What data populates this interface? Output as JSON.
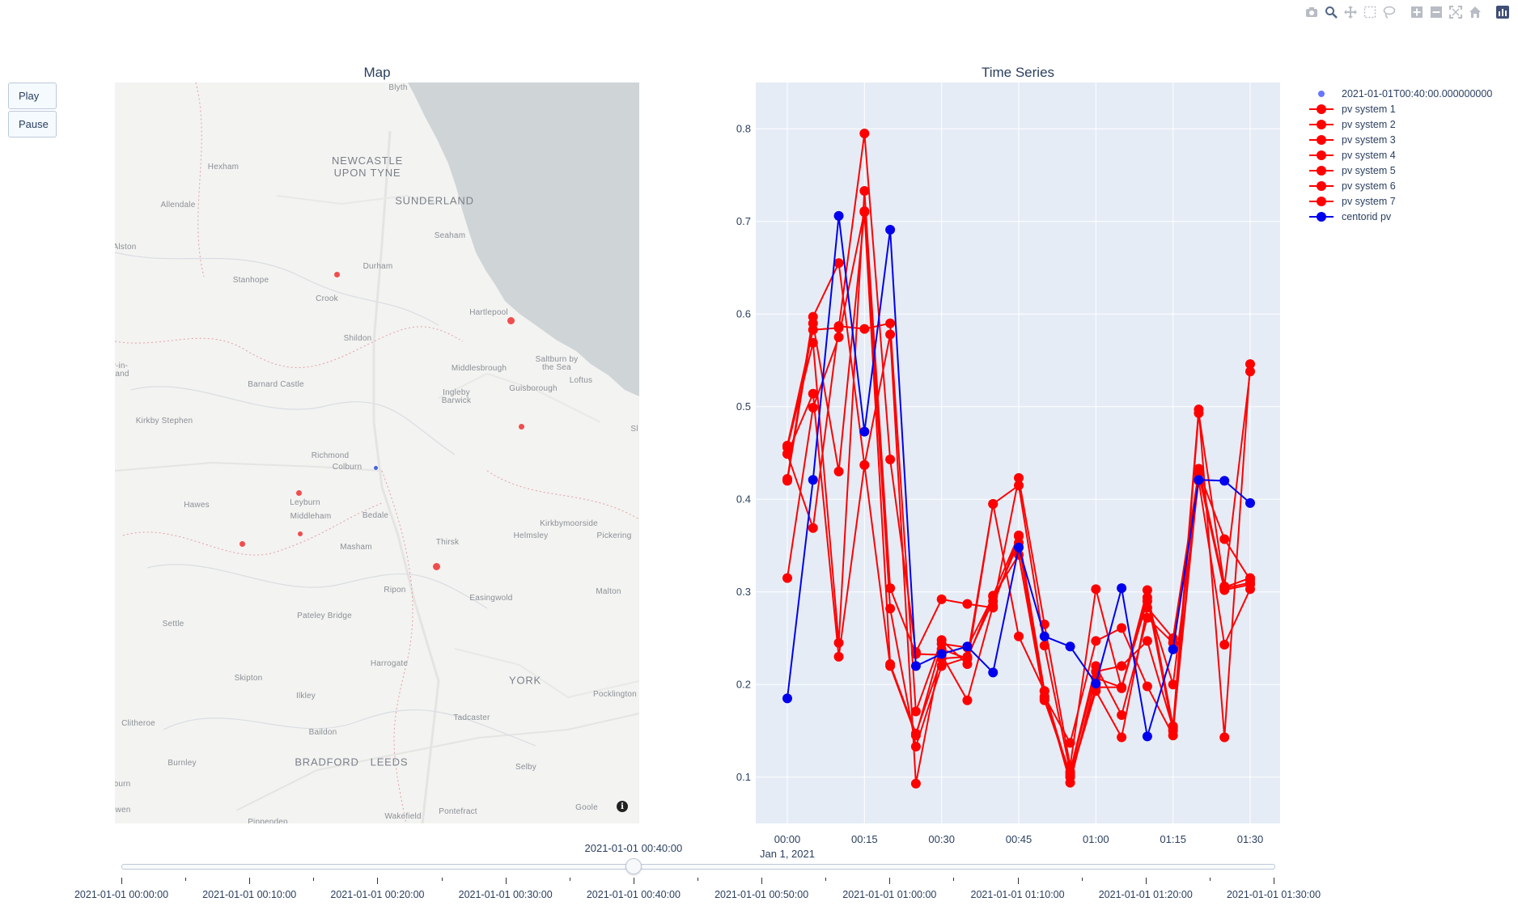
{
  "modebar": {
    "icons": [
      "camera-icon",
      "zoom-icon",
      "pan-icon",
      "box-select-icon",
      "lasso-icon",
      "zoom-in-icon",
      "zoom-out-icon",
      "autoscale-icon",
      "reset-axes-icon",
      "plotly-logo-icon"
    ]
  },
  "controls": {
    "play_label": "Play",
    "pause_label": "Pause"
  },
  "map": {
    "title": "Map",
    "places": [
      {
        "name": "Blyth"
      },
      {
        "name": "NEWCASTLE\nUPON TYNE",
        "big": true
      },
      {
        "name": "Hexham"
      },
      {
        "name": "SUNDERLAND",
        "big": true
      },
      {
        "name": "Allendale"
      },
      {
        "name": "Seaham"
      },
      {
        "name": "Alston"
      },
      {
        "name": "Durham"
      },
      {
        "name": "Stanhope"
      },
      {
        "name": "Crook"
      },
      {
        "name": "Hartlepool"
      },
      {
        "name": "Shildon"
      },
      {
        "name": "Saltburn by\nthe Sea"
      },
      {
        "name": "Middlesbrough"
      },
      {
        "name": "Loftus"
      },
      {
        "name": "Barnard Castle"
      },
      {
        "name": "Ingleby\nBarwick"
      },
      {
        "name": "Guisborough"
      },
      {
        "name": "Kirkby Stephen"
      },
      {
        "name": "Richmond"
      },
      {
        "name": "Colburn"
      },
      {
        "name": "Hawes"
      },
      {
        "name": "Leyburn"
      },
      {
        "name": "Middleham"
      },
      {
        "name": "Bedale"
      },
      {
        "name": "Kirkbymoorside"
      },
      {
        "name": "Thirsk"
      },
      {
        "name": "Helmsley"
      },
      {
        "name": "Pickering"
      },
      {
        "name": "Masham"
      },
      {
        "name": "Ripon"
      },
      {
        "name": "Easingwold"
      },
      {
        "name": "Malton"
      },
      {
        "name": "Settle"
      },
      {
        "name": "Pateley Bridge"
      },
      {
        "name": "Harrogate"
      },
      {
        "name": "Skipton"
      },
      {
        "name": "Ilkley"
      },
      {
        "name": "YORK",
        "big": true
      },
      {
        "name": "Pocklington"
      },
      {
        "name": "Clitheroe"
      },
      {
        "name": "Tadcaster"
      },
      {
        "name": "Baildon"
      },
      {
        "name": "Burnley"
      },
      {
        "name": "BRADFORD",
        "big": true
      },
      {
        "name": "LEEDS",
        "big": true
      },
      {
        "name": "Selby"
      },
      {
        "name": "Goole"
      },
      {
        "name": "Wakefield"
      },
      {
        "name": "Pontefract"
      },
      {
        "name": "Pippenden"
      },
      {
        "name": "y-in-\nrland"
      },
      {
        "name": "burn"
      },
      {
        "name": "wen"
      },
      {
        "name": "Sl"
      }
    ],
    "markers": [
      {
        "color": "#ef3b3b"
      },
      {
        "color": "#ef3b3b"
      },
      {
        "color": "#ef3b3b"
      },
      {
        "color": "#ef3b3b"
      },
      {
        "color": "#ef3b3b"
      },
      {
        "color": "#ef3b3b"
      },
      {
        "color": "#ef3b3b"
      },
      {
        "color": "#3355dd"
      }
    ]
  },
  "chart_data": {
    "type": "line",
    "title": "Time Series",
    "x": [
      "00:00",
      "00:05",
      "00:10",
      "00:15",
      "00:20",
      "00:25",
      "00:30",
      "00:35",
      "00:40",
      "00:45",
      "00:50",
      "00:55",
      "01:00",
      "01:05",
      "01:10",
      "01:15",
      "01:20",
      "01:25",
      "01:30"
    ],
    "x_tick_labels": [
      "00:00",
      "00:15",
      "00:30",
      "00:45",
      "01:00",
      "01:15",
      "01:30"
    ],
    "x_date_label": "Jan 1, 2021",
    "y_ticks": [
      0.1,
      0.2,
      0.3,
      0.4,
      0.5,
      0.6,
      0.7,
      0.8
    ],
    "ylim": [
      0.05,
      0.85
    ],
    "grid": true,
    "legend_placement": "top-right",
    "series": [
      {
        "name": "pv system 1",
        "color": "#ff0000",
        "values": [
          0.458,
          0.583,
          0.585,
          0.795,
          0.443,
          0.235,
          0.292,
          0.287,
          0.283,
          0.423,
          0.265,
          0.112,
          0.303,
          0.196,
          0.302,
          0.155,
          0.497,
          0.143,
          0.546
        ]
      },
      {
        "name": "pv system 2",
        "color": "#ff0000",
        "values": [
          0.422,
          0.597,
          0.655,
          0.437,
          0.578,
          0.093,
          0.238,
          0.228,
          0.296,
          0.361,
          0.187,
          0.137,
          0.247,
          0.261,
          0.198,
          0.145,
          0.493,
          0.306,
          0.538
        ]
      },
      {
        "name": "pv system 3",
        "color": "#ff0000",
        "values": [
          0.315,
          0.499,
          0.575,
          0.711,
          0.282,
          0.133,
          0.22,
          0.229,
          0.395,
          0.415,
          0.242,
          0.106,
          0.22,
          0.167,
          0.272,
          0.245,
          0.429,
          0.304,
          0.31
        ]
      },
      {
        "name": "pv system 4",
        "color": "#ff0000",
        "values": [
          0.449,
          0.369,
          0.587,
          0.584,
          0.59,
          0.171,
          0.248,
          0.222,
          0.395,
          0.252,
          0.193,
          0.094,
          0.207,
          0.197,
          0.29,
          0.2,
          0.42,
          0.243,
          0.303
        ]
      },
      {
        "name": "pv system 5",
        "color": "#ff0000",
        "values": [
          0.456,
          0.569,
          0.245,
          0.733,
          0.304,
          0.233,
          0.232,
          0.183,
          0.285,
          0.36,
          0.193,
          0.1,
          0.193,
          0.143,
          0.283,
          0.25,
          0.43,
          0.357,
          0.313
        ]
      },
      {
        "name": "pv system 6",
        "color": "#ff0000",
        "values": [
          0.449,
          0.514,
          0.23,
          0.437,
          0.22,
          0.145,
          0.244,
          0.24,
          0.295,
          0.34,
          0.183,
          0.104,
          0.214,
          0.22,
          0.247,
          0.153,
          0.433,
          0.305,
          0.315
        ]
      },
      {
        "name": "pv system 7",
        "color": "#ff0000",
        "values": [
          0.42,
          0.59,
          0.43,
          0.71,
          0.222,
          0.147,
          0.228,
          0.23,
          0.29,
          0.353,
          0.185,
          0.101,
          0.197,
          0.197,
          0.294,
          0.15,
          0.427,
          0.302,
          0.308
        ]
      },
      {
        "name": "centorid pv",
        "color": "#0000ee",
        "values": [
          0.185,
          0.421,
          0.706,
          0.473,
          0.691,
          0.22,
          0.233,
          0.241,
          0.213,
          0.348,
          0.252,
          0.241,
          0.201,
          0.304,
          0.144,
          0.238,
          0.421,
          0.42,
          0.396
        ]
      }
    ],
    "current_frame_legend": {
      "name": "2021-01-01T00:40:00.000000000",
      "color": "#6677ff"
    }
  },
  "slider": {
    "current_label": "2021-01-01 00:40:00",
    "current_index": 8,
    "steps": 19,
    "labels": [
      "2021-01-01 00:00:00",
      "2021-01-01 00:10:00",
      "2021-01-01 00:20:00",
      "2021-01-01 00:30:00",
      "2021-01-01 00:40:00",
      "2021-01-01 00:50:00",
      "2021-01-01 01:00:00",
      "2021-01-01 01:10:00",
      "2021-01-01 01:20:00",
      "2021-01-01 01:30:00"
    ]
  }
}
